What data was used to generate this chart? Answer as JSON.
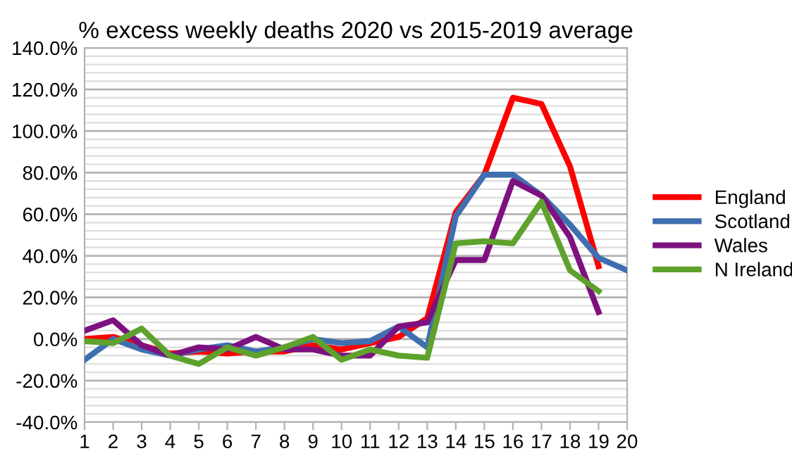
{
  "chart_data": {
    "type": "line",
    "title": "% excess weekly deaths 2020 vs 2015-2019 average",
    "categories": [
      "1",
      "2",
      "3",
      "4",
      "5",
      "6",
      "7",
      "8",
      "9",
      "10",
      "11",
      "12",
      "13",
      "14",
      "15",
      "16",
      "17",
      "18",
      "19",
      "20"
    ],
    "series": [
      {
        "name": "England",
        "color": "#ff0000",
        "values": [
          0,
          1,
          -3,
          -7,
          -6,
          -7,
          -6,
          -6,
          -3,
          -5,
          -2,
          1,
          10,
          61,
          79,
          116,
          113,
          83,
          35,
          null
        ]
      },
      {
        "name": "Scotland",
        "color": "#3f6fb0",
        "values": [
          -10,
          0,
          -5,
          -8,
          -5,
          -3,
          -6,
          -4,
          0,
          -2,
          -1,
          6,
          -4,
          59,
          79,
          79,
          69,
          55,
          39,
          33
        ]
      },
      {
        "name": "Wales",
        "color": "#7e1180",
        "values": [
          4,
          9,
          -3,
          -8,
          -4,
          -5,
          1,
          -5,
          -5,
          -8,
          -8,
          6,
          8,
          38,
          38,
          76,
          69,
          49,
          13,
          null
        ]
      },
      {
        "name": "N Ireland",
        "color": "#5ea22d",
        "values": [
          -1,
          -2,
          5,
          -8,
          -12,
          -4,
          -8,
          -4,
          1,
          -10,
          -5,
          -8,
          -9,
          46,
          47,
          46,
          66,
          33,
          23,
          null
        ]
      }
    ],
    "ylim": [
      -40,
      140
    ],
    "yticks": [
      {
        "value": -40,
        "label": "-40.0%"
      },
      {
        "value": -20,
        "label": "-20.0%"
      },
      {
        "value": 0,
        "label": "0.0%"
      },
      {
        "value": 20,
        "label": "20.0%"
      },
      {
        "value": 40,
        "label": "40.0%"
      },
      {
        "value": 60,
        "label": "60.0%"
      },
      {
        "value": 80,
        "label": "80.0%"
      },
      {
        "value": 100,
        "label": "100.0%"
      },
      {
        "value": 120,
        "label": "120.0%"
      },
      {
        "value": 140,
        "label": "140.0%"
      }
    ],
    "grid": "y",
    "legend": "right",
    "marker": "none",
    "line_style": "solid"
  }
}
